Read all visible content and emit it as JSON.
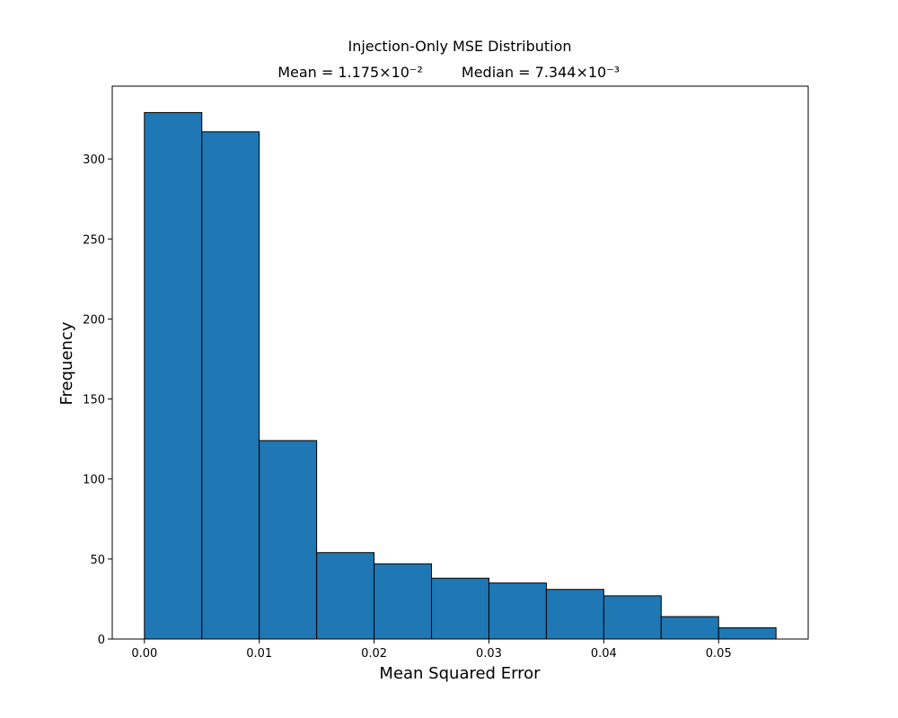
{
  "colors": {
    "bar_fill": "#1f77b4",
    "bar_edge": "#000000",
    "background": "#ffffff",
    "axis": "#000000"
  },
  "chart_data": {
    "type": "bar",
    "subtype": "histogram",
    "title": "Injection-Only MSE Distribution",
    "subtitle_mean": "Mean = 1.175×10⁻²",
    "subtitle_median": "Median = 7.344×10⁻³",
    "xlabel": "Mean Squared Error",
    "ylabel": "Frequency",
    "xlim": [
      -0.0028,
      0.0578
    ],
    "ylim": [
      0,
      345.5
    ],
    "bin_edges": [
      0.0,
      0.005,
      0.01,
      0.015,
      0.02,
      0.025,
      0.03,
      0.035,
      0.04,
      0.045,
      0.05,
      0.055
    ],
    "values": [
      329,
      317,
      124,
      54,
      47,
      38,
      35,
      31,
      27,
      14,
      7
    ],
    "xticks": [
      0.0,
      0.01,
      0.02,
      0.03,
      0.04,
      0.05
    ],
    "xtick_labels": [
      "0.00",
      "0.01",
      "0.02",
      "0.03",
      "0.04",
      "0.05"
    ],
    "yticks": [
      0,
      50,
      100,
      150,
      200,
      250,
      300
    ],
    "ytick_labels": [
      "0",
      "50",
      "100",
      "150",
      "200",
      "250",
      "300"
    ],
    "grid": false,
    "legend": "none"
  }
}
